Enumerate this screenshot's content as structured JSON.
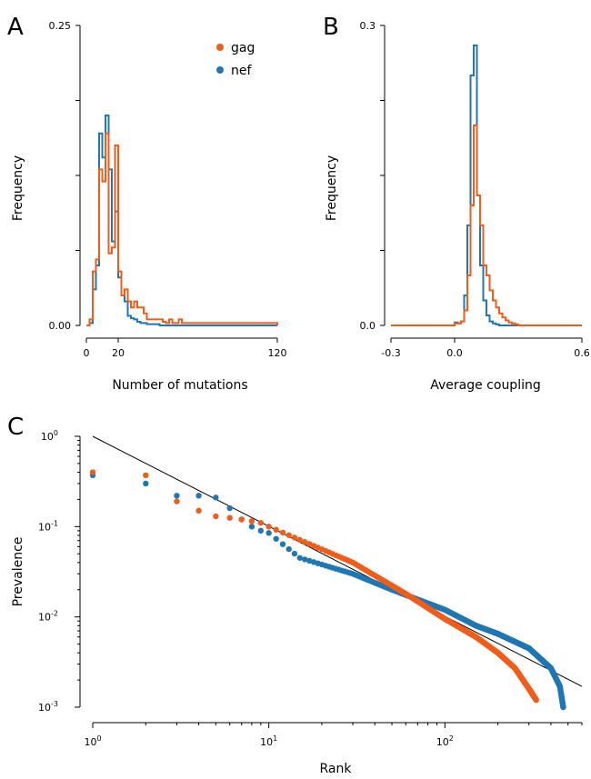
{
  "colors": {
    "gag": "#f25c19",
    "nef": "#1f77b4",
    "fit_line": "#000000"
  },
  "legend": {
    "gag": "gag",
    "nef": "nef"
  },
  "chart_data": [
    {
      "panel": "A",
      "type": "histogram",
      "xlabel": "Number of mutations",
      "ylabel": "Frequency",
      "xlim": [
        0,
        120
      ],
      "ylim": [
        0,
        0.25
      ],
      "x_tick_labels": [
        "0",
        "20",
        "120"
      ],
      "x_ticks": [
        0,
        20,
        120
      ],
      "y_tick_labels": [
        "0.00",
        "0.25"
      ],
      "y_ticks": [
        0,
        0.25
      ],
      "legend_position": "top-center",
      "bin_width": 2,
      "bin_start": 2,
      "series": [
        {
          "name": "gag",
          "color_key": "gag",
          "values": [
            0.005,
            0.045,
            0.055,
            0.13,
            0.12,
            0.16,
            0.06,
            0.065,
            0.15,
            0.045,
            0.025,
            0.03,
            0.02,
            0.015,
            0.02,
            0.015,
            0.015,
            0.01,
            0.005,
            0.005,
            0.005,
            0.005,
            0.005,
            0.003,
            0.002,
            0.005,
            0.002,
            0.002,
            0.005,
            0.002,
            0.002,
            0.002,
            0.002,
            0.002,
            0.002,
            0.002,
            0.002,
            0.002,
            0.002,
            0.002,
            0.002,
            0.002,
            0.002,
            0.002,
            0.002,
            0.002,
            0.002,
            0.002,
            0.002,
            0.002,
            0.002,
            0.002,
            0.002,
            0.002,
            0.002,
            0.002,
            0.002,
            0.002,
            0.002
          ]
        },
        {
          "name": "nef",
          "color_key": "nef",
          "values": [
            0.002,
            0.03,
            0.05,
            0.16,
            0.14,
            0.175,
            0.13,
            0.07,
            0.095,
            0.04,
            0.025,
            0.02,
            0.008,
            0.006,
            0.005,
            0.003,
            0.002,
            0.002,
            0.001,
            0.001,
            0.001,
            0.001,
            0,
            0,
            0,
            0,
            0,
            0,
            0,
            0,
            0,
            0,
            0,
            0,
            0,
            0,
            0,
            0,
            0,
            0,
            0,
            0,
            0,
            0,
            0,
            0,
            0,
            0,
            0,
            0,
            0,
            0,
            0,
            0,
            0,
            0,
            0,
            0,
            0
          ]
        }
      ]
    },
    {
      "panel": "B",
      "type": "histogram",
      "xlabel": "Average coupling",
      "ylabel": "Frequency",
      "xlim": [
        -0.3,
        0.6
      ],
      "ylim": [
        0,
        0.3
      ],
      "x_tick_labels": [
        "-0.3",
        "0.0",
        "0.6"
      ],
      "x_ticks": [
        -0.3,
        0,
        0.6
      ],
      "y_tick_labels": [
        "0.0",
        "0.3"
      ],
      "y_ticks": [
        0,
        0.3
      ],
      "bin_width": 0.015,
      "bin_start": 0.0,
      "series": [
        {
          "name": "gag",
          "color_key": "gag",
          "values": [
            0.002,
            0.002,
            0.004,
            0.015,
            0.05,
            0.12,
            0.2,
            0.13,
            0.1,
            0.06,
            0.05,
            0.035,
            0.025,
            0.018,
            0.012,
            0.008,
            0.005,
            0.003,
            0.002,
            0.001
          ]
        },
        {
          "name": "nef",
          "color_key": "nef",
          "values": [
            0.003,
            0.002,
            0.004,
            0.03,
            0.1,
            0.25,
            0.28,
            0.13,
            0.06,
            0.025,
            0.01,
            0.004,
            0.002,
            0.001,
            0,
            0,
            0,
            0,
            0,
            0
          ]
        }
      ]
    },
    {
      "panel": "C",
      "type": "scatter",
      "xscale": "log",
      "yscale": "log",
      "xlabel": "Rank",
      "ylabel": "Prevalence",
      "xlim": [
        1,
        600
      ],
      "ylim": [
        0.001,
        1
      ],
      "x_tick_labels": [
        "10",
        "10",
        "10"
      ],
      "x_tick_exponents": [
        "0",
        "1",
        "2"
      ],
      "x_ticks": [
        1,
        10,
        100
      ],
      "y_tick_labels": [
        "10",
        "10",
        "10",
        "10"
      ],
      "y_tick_exponents": [
        "-3",
        "-2",
        "-1",
        "0"
      ],
      "y_ticks": [
        0.001,
        0.01,
        0.1,
        1
      ],
      "fit_line": {
        "x": [
          1,
          600
        ],
        "y": [
          1,
          0.0017
        ]
      },
      "series": [
        {
          "name": "gag",
          "color_key": "gag",
          "n_points": 330,
          "head": [
            0.4,
            0.37,
            0.19,
            0.15,
            0.13,
            0.125,
            0.12,
            0.115,
            0.11,
            0.1
          ],
          "profile_x": [
            10,
            30,
            60,
            100,
            150,
            200,
            250,
            300,
            330
          ],
          "profile_y": [
            0.1,
            0.04,
            0.018,
            0.0095,
            0.006,
            0.004,
            0.0027,
            0.0016,
            0.0012
          ]
        },
        {
          "name": "nef",
          "color_key": "nef",
          "n_points": 470,
          "head": [
            0.37,
            0.3,
            0.22,
            0.22,
            0.21,
            0.16,
            0.12,
            0.1,
            0.09,
            0.085
          ],
          "profile_x": [
            10,
            15,
            30,
            50,
            100,
            150,
            200,
            300,
            400,
            450,
            470
          ],
          "profile_y": [
            0.085,
            0.045,
            0.03,
            0.02,
            0.012,
            0.008,
            0.0065,
            0.0045,
            0.0027,
            0.0017,
            0.001
          ]
        }
      ]
    }
  ]
}
